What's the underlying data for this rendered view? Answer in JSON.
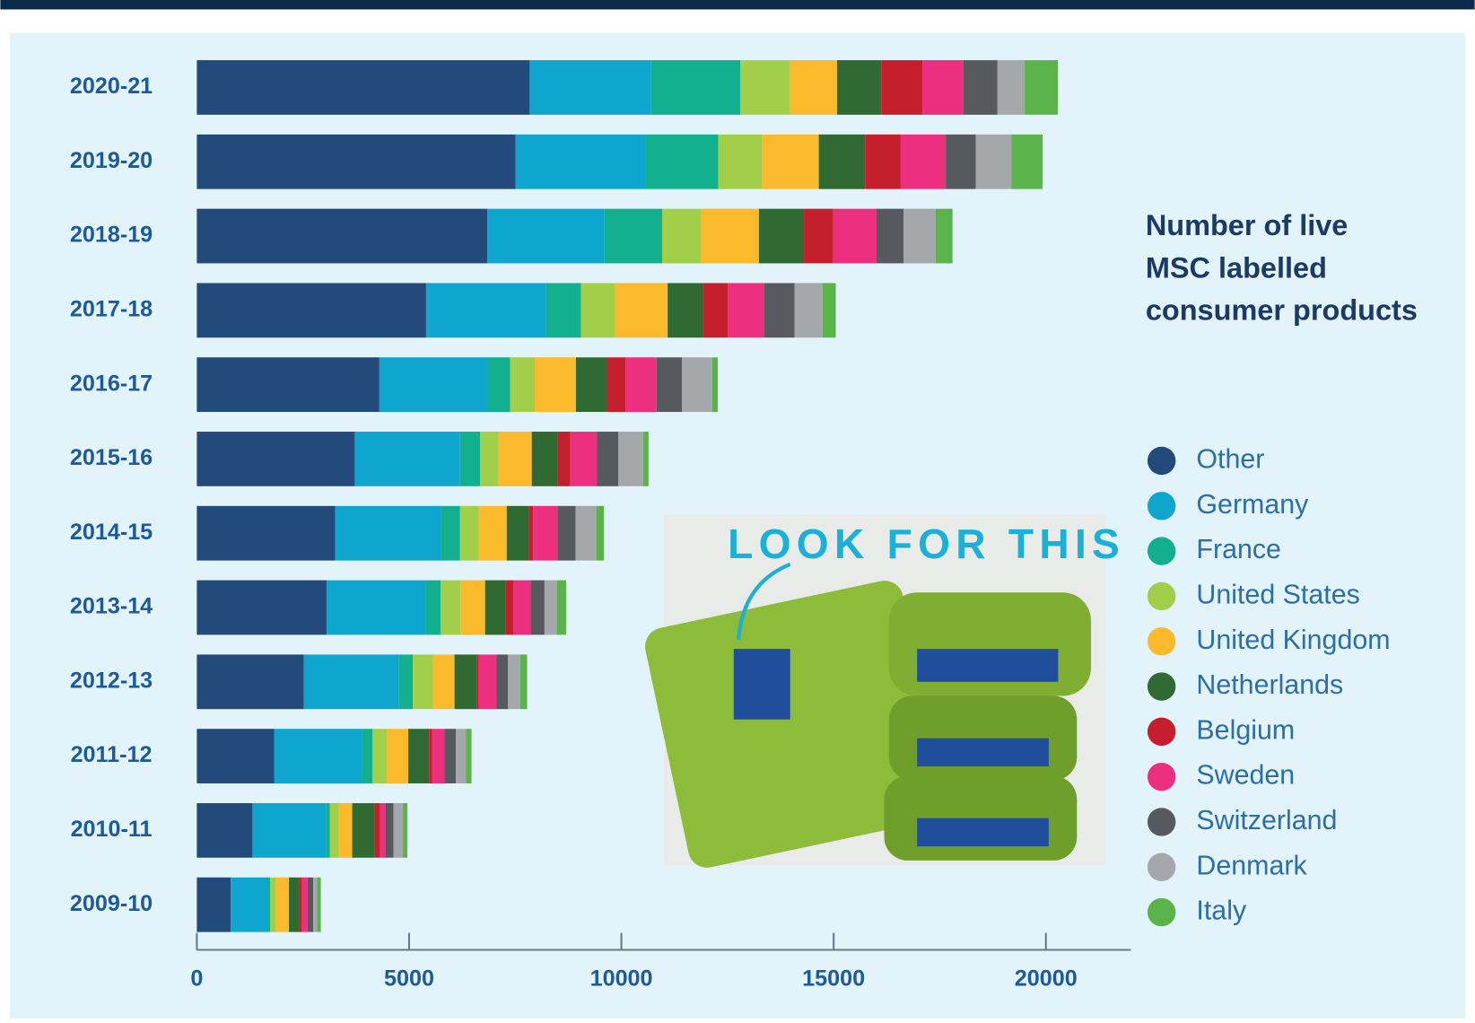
{
  "chart_data": {
    "type": "stacked-bar-horizontal",
    "title": [
      "Number of live",
      "MSC labelled",
      "consumer products"
    ],
    "categories": [
      "2020-21",
      "2019-20",
      "2018-19",
      "2017-18",
      "2016-17",
      "2015-16",
      "2014-15",
      "2013-14",
      "2012-13",
      "2011-12",
      "2010-11",
      "2009-10"
    ],
    "series": [
      {
        "name": "Other",
        "color": "#224a7b",
        "values": [
          7840,
          7510,
          6840,
          5400,
          4300,
          3720,
          3260,
          3060,
          2520,
          1820,
          1310,
          800
        ]
      },
      {
        "name": "Germany",
        "color": "#0ea5cf",
        "values": [
          2860,
          3060,
          2750,
          2830,
          2550,
          2480,
          2500,
          2330,
          2240,
          2080,
          1730,
          840
        ]
      },
      {
        "name": "France",
        "color": "#12b08f",
        "values": [
          2100,
          1710,
          1370,
          820,
          530,
          470,
          440,
          350,
          330,
          240,
          90,
          90
        ]
      },
      {
        "name": "United States",
        "color": "#a2cf4a",
        "values": [
          1170,
          1040,
          910,
          800,
          580,
          440,
          440,
          470,
          470,
          330,
          220,
          130
        ]
      },
      {
        "name": "United Kingdom",
        "color": "#fbb92c",
        "values": [
          1110,
          1330,
          1370,
          1240,
          970,
          780,
          660,
          580,
          510,
          510,
          310,
          310
        ]
      },
      {
        "name": "Netherlands",
        "color": "#2f6a32",
        "values": [
          1040,
          1090,
          1060,
          840,
          730,
          600,
          530,
          490,
          530,
          490,
          530,
          240
        ]
      },
      {
        "name": "Belgium",
        "color": "#c51f2e",
        "values": [
          970,
          840,
          690,
          580,
          440,
          310,
          90,
          180,
          40,
          70,
          130,
          70
        ]
      },
      {
        "name": "Sweden",
        "color": "#ec2f7e",
        "values": [
          970,
          1060,
          1020,
          860,
          730,
          620,
          580,
          400,
          420,
          290,
          130,
          130
        ]
      },
      {
        "name": "Switzerland",
        "color": "#565a5e",
        "values": [
          800,
          710,
          640,
          710,
          600,
          510,
          420,
          330,
          270,
          270,
          180,
          130
        ]
      },
      {
        "name": "Denmark",
        "color": "#a5a8ab",
        "values": [
          640,
          840,
          750,
          660,
          710,
          580,
          490,
          290,
          290,
          240,
          220,
          90
        ]
      },
      {
        "name": "Italy",
        "color": "#5ab449",
        "values": [
          780,
          730,
          400,
          310,
          130,
          130,
          180,
          220,
          160,
          130,
          110,
          90
        ]
      }
    ],
    "xlim": [
      0,
      22000
    ],
    "xticks": [
      0,
      5000,
      10000,
      15000,
      20000
    ],
    "photo_caption": "LOOK FOR THIS"
  }
}
